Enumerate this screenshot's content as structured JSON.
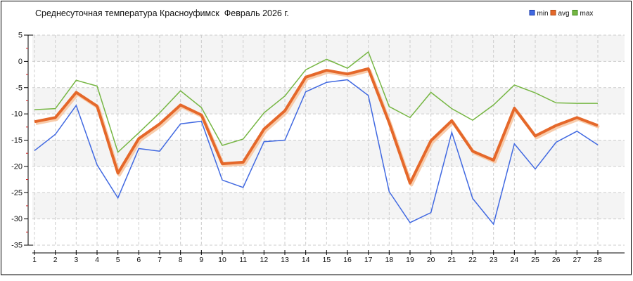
{
  "title": "Среднесуточная температура Красноуфимск  Февраль 2026 г.",
  "legend": [
    {
      "label": "min"
    },
    {
      "label": "avg"
    },
    {
      "label": "max"
    }
  ],
  "colors": {
    "min": "#4169e1",
    "avg": "#e5682a",
    "avg_glow": "#f7c6a2",
    "max": "#76b643",
    "legend_border_min": "#1b3aa8",
    "legend_border_avg": "#b04d15",
    "legend_border_max": "#3c8a1c",
    "grid": "#cccccc",
    "band": "#f4f4f4",
    "axis": "#000000",
    "minor_tick": "#cc2222",
    "text": "#111111",
    "frame": "#000000"
  },
  "chart_data": {
    "type": "line",
    "title": "Среднесуточная температура Красноуфимск  Февраль 2026 г.",
    "x": [
      1,
      2,
      3,
      4,
      5,
      6,
      7,
      8,
      9,
      10,
      11,
      12,
      13,
      14,
      15,
      16,
      17,
      18,
      19,
      20,
      21,
      22,
      23,
      24,
      25,
      26,
      27,
      28
    ],
    "series": [
      {
        "name": "min",
        "values": [
          -17.0,
          -13.9,
          -8.4,
          -19.7,
          -26.0,
          -16.6,
          -17.1,
          -11.9,
          -11.4,
          -22.6,
          -24.0,
          -15.3,
          -15.0,
          -5.8,
          -4.0,
          -3.5,
          -6.5,
          -24.8,
          -30.7,
          -28.8,
          -13.5,
          -26.1,
          -31.0,
          -15.7,
          -20.5,
          -15.4,
          -13.3,
          -15.9
        ]
      },
      {
        "name": "avg",
        "values": [
          -11.5,
          -10.7,
          -5.9,
          -8.5,
          -21.3,
          -14.7,
          -11.9,
          -8.3,
          -10.2,
          -19.5,
          -19.2,
          -12.9,
          -9.4,
          -3.0,
          -1.7,
          -2.4,
          -1.4,
          -11.7,
          -23.2,
          -15.1,
          -11.3,
          -17.1,
          -18.8,
          -8.9,
          -14.2,
          -12.2,
          -10.7,
          -12.2
        ]
      },
      {
        "name": "max",
        "values": [
          -9.2,
          -9.0,
          -3.6,
          -4.7,
          -17.3,
          -13.6,
          -9.8,
          -5.6,
          -8.8,
          -16.0,
          -14.8,
          -9.8,
          -6.6,
          -1.6,
          0.4,
          -1.3,
          1.8,
          -8.6,
          -10.7,
          -5.9,
          -9.0,
          -11.2,
          -8.3,
          -4.5,
          -6.0,
          -7.9,
          -8.0,
          -8.0
        ]
      }
    ],
    "ylim": [
      -35,
      5
    ],
    "yticks": [
      5,
      0,
      -5,
      -10,
      -15,
      -20,
      -25,
      -30,
      -35
    ],
    "minor_ticks": [
      2.5,
      -2.5,
      -7.5,
      -12.5,
      -17.5,
      -22.5,
      -27.5,
      -32.5
    ],
    "xlabel": "",
    "ylabel": "",
    "grid": true,
    "legend_position": "top-right"
  }
}
